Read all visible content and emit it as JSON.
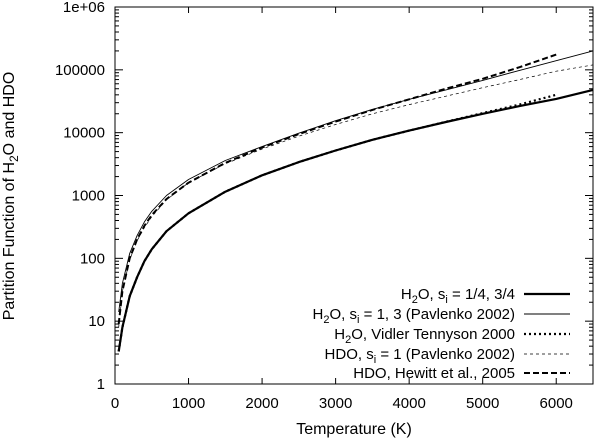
{
  "chart_data": {
    "type": "line",
    "xlabel": "Temperature (K)",
    "ylabel": {
      "parts": [
        {
          "text": "Partition Function of H",
          "sub": false
        },
        {
          "text": "2",
          "sub": true
        },
        {
          "text": "O and HDO",
          "sub": false
        }
      ]
    },
    "xlim": [
      0,
      6500
    ],
    "ylim": [
      1,
      1000000
    ],
    "yscale": "log",
    "grid": false,
    "legend_position": "bottom-right",
    "x_ticks": [
      0,
      1000,
      2000,
      3000,
      4000,
      5000,
      6000
    ],
    "x_tick_labels": [
      "0",
      "1000",
      "2000",
      "3000",
      "4000",
      "5000",
      "6000"
    ],
    "y_ticks": [
      1,
      10,
      100,
      1000,
      10000,
      100000,
      1000000
    ],
    "y_tick_labels": [
      "1",
      "10",
      "100",
      "1000",
      "10000",
      "100000",
      "1e+06"
    ],
    "series": [
      {
        "name_parts": [
          {
            "text": "H",
            "sub": false
          },
          {
            "text": "2",
            "sub": true
          },
          {
            "text": "O, s",
            "sub": false
          },
          {
            "text": "i",
            "sub": true
          },
          {
            "text": " = 1/4, 3/4",
            "sub": false
          }
        ],
        "style": "solid-thick",
        "x": [
          50,
          100,
          200,
          300,
          400,
          500,
          700,
          1000,
          1500,
          2000,
          2500,
          3000,
          3500,
          4000,
          4500,
          5000,
          5500,
          6000,
          6500
        ],
        "y": [
          3.3,
          8,
          25,
          50,
          90,
          140,
          270,
          520,
          1150,
          2100,
          3400,
          5200,
          7700,
          10800,
          14800,
          20000,
          26500,
          34500,
          48000
        ]
      },
      {
        "name_parts": [
          {
            "text": "H",
            "sub": false
          },
          {
            "text": "2",
            "sub": true
          },
          {
            "text": "O, s",
            "sub": false
          },
          {
            "text": "i",
            "sub": true
          },
          {
            "text": " = 1, 3 (Pavlenko 2002)",
            "sub": false
          }
        ],
        "style": "solid-thin",
        "x": [
          50,
          100,
          200,
          300,
          400,
          500,
          700,
          1000,
          1500,
          2000,
          2500,
          3000,
          3500,
          4000,
          4500,
          5000,
          5500,
          6000,
          6500
        ],
        "y": [
          14,
          40,
          120,
          230,
          380,
          560,
          1000,
          1800,
          3600,
          6000,
          9800,
          15500,
          23500,
          34000,
          48000,
          68000,
          98000,
          140000,
          200000
        ]
      },
      {
        "name_parts": [
          {
            "text": "H",
            "sub": false
          },
          {
            "text": "2",
            "sub": true
          },
          {
            "text": "O, Vidler  Tennyson 2000",
            "sub": false
          }
        ],
        "style": "dotted",
        "x": [
          50,
          100,
          200,
          300,
          400,
          500,
          700,
          1000,
          1500,
          2000,
          2500,
          3000,
          3500,
          4000,
          4500,
          5000,
          5500,
          6000
        ],
        "y": [
          3.3,
          8,
          25,
          50,
          90,
          140,
          270,
          520,
          1150,
          2100,
          3400,
          5200,
          7700,
          10800,
          14900,
          20500,
          28000,
          40000
        ]
      },
      {
        "name_parts": [
          {
            "text": "HDO, s",
            "sub": false
          },
          {
            "text": "i",
            "sub": true
          },
          {
            "text": " = 1 (Pavlenko 2002)",
            "sub": false
          }
        ],
        "style": "dashed-thin",
        "x": [
          50,
          100,
          200,
          300,
          400,
          500,
          700,
          1000,
          1500,
          2000,
          2500,
          3000,
          3500,
          4000,
          4500,
          5000,
          5500,
          6000,
          6500
        ],
        "y": [
          8,
          30,
          95,
          190,
          310,
          460,
          850,
          1600,
          3200,
          5500,
          8800,
          13500,
          20000,
          28000,
          38000,
          52000,
          70000,
          95000,
          120000
        ]
      },
      {
        "name_parts": [
          {
            "text": "HDO, Hewitt et al., 2005",
            "sub": false
          }
        ],
        "style": "dashed-thick",
        "x": [
          50,
          100,
          200,
          300,
          400,
          500,
          700,
          1000,
          1500,
          2000,
          2500,
          3000,
          3500,
          4000,
          4500,
          5000,
          5500,
          6000
        ],
        "y": [
          9,
          30,
          100,
          200,
          330,
          490,
          880,
          1600,
          3300,
          5800,
          9500,
          15000,
          23000,
          34000,
          50000,
          72000,
          110000,
          175000
        ]
      }
    ]
  }
}
